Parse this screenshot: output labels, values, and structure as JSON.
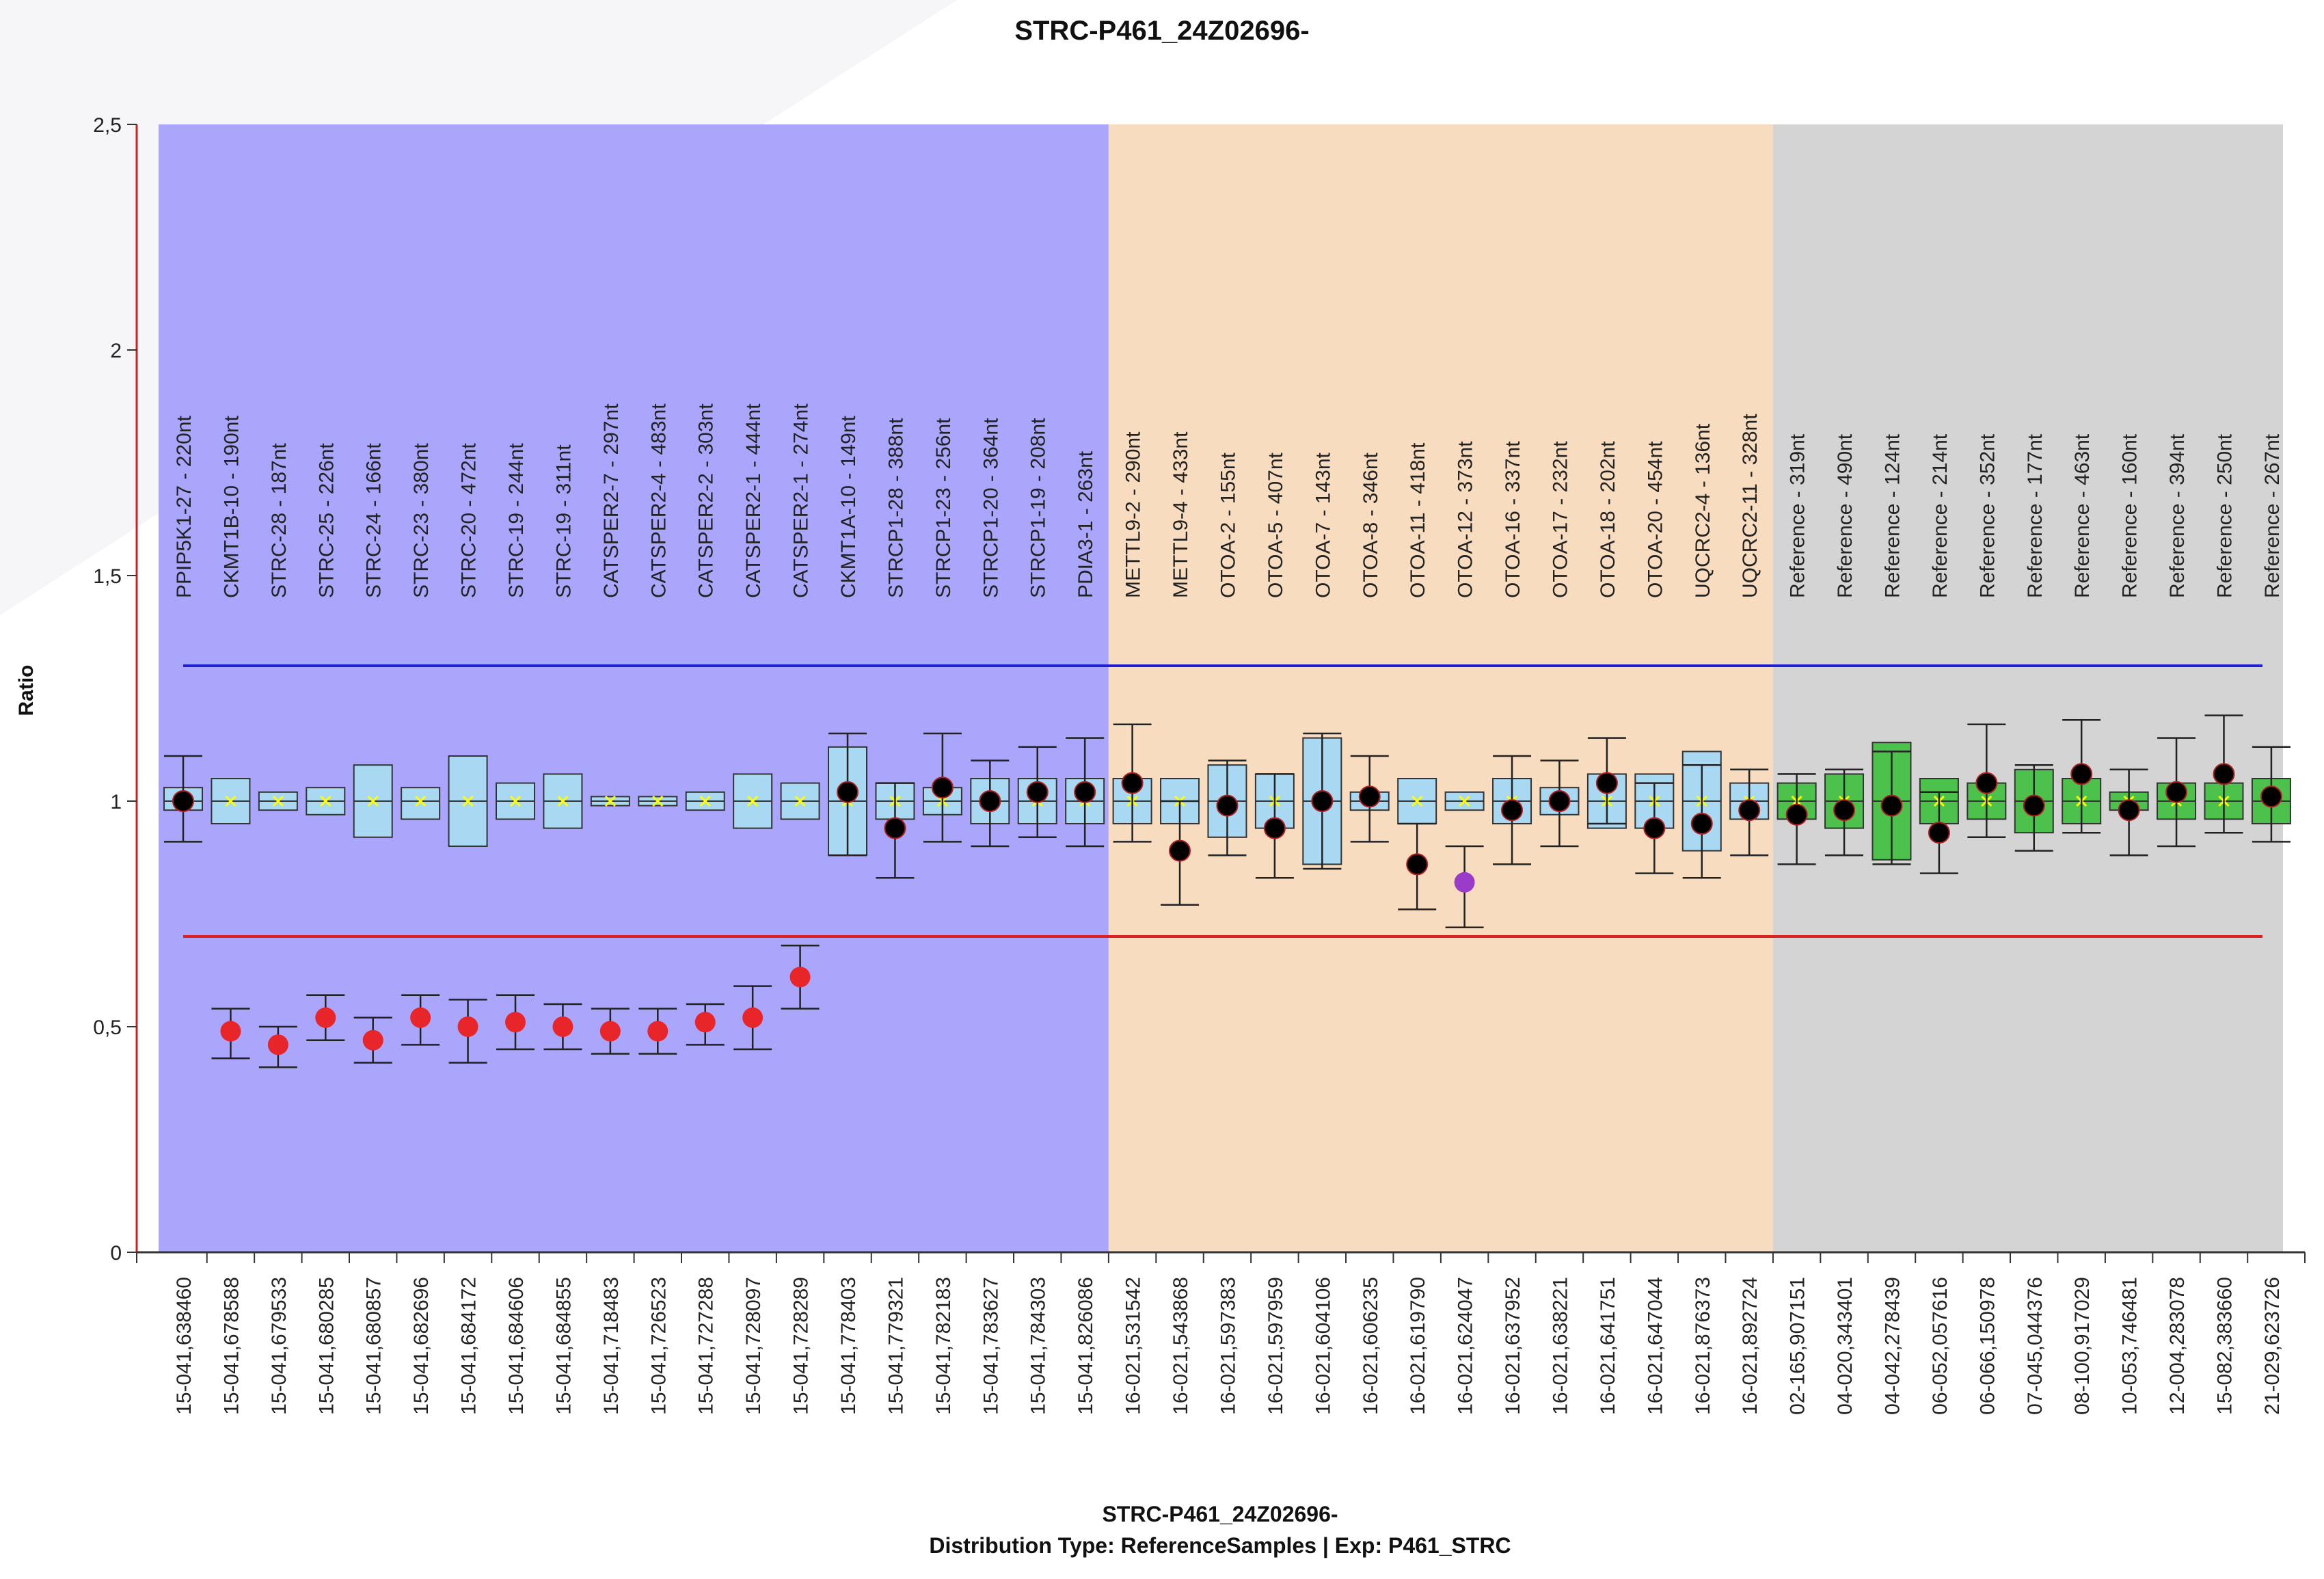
{
  "chart_data": {
    "type": "boxplot",
    "title": "STRC-P461_24Z02696-",
    "footer_line1": "STRC-P461_24Z02696-",
    "footer_line2": "Distribution Type: ReferenceSamples | Exp: P461_STRC",
    "ylabel": "Ratio",
    "ylim": [
      0,
      2.5
    ],
    "yticks": [
      0,
      0.5,
      1,
      1.5,
      2,
      2.5
    ],
    "ytick_labels": [
      "0",
      "0,5",
      "1",
      "1,5",
      "2",
      "2,5"
    ],
    "thresholds": {
      "upper": 1.3,
      "lower": 0.7,
      "upper_color": "#1f1fd0",
      "lower_color": "#e02020"
    },
    "colors": {
      "region_blue": "#a9a6fc",
      "region_orange": "#f8dcbf",
      "region_gray": "#d4d4d4",
      "box_blue": "#a9d8f2",
      "box_green": "#4cc24c",
      "marker_normal": "#000000",
      "marker_loss": "#e8262a",
      "marker_violet": "#9a3cc8",
      "mean_cross": "#ffff00",
      "axis_left": "#d02020"
    },
    "regions": [
      {
        "from": 0,
        "to": 19,
        "type": "blue"
      },
      {
        "from": 20,
        "to": 33,
        "type": "orange"
      },
      {
        "from": 34,
        "to": 44,
        "type": "gray"
      }
    ],
    "probes": [
      {
        "name": "PPIP5K1-27 - 220nt",
        "pos": "15-041,638460",
        "box": [
          0.98,
          1.03
        ],
        "mean": 1.0,
        "marker": 1.0,
        "err": [
          0.91,
          1.1
        ],
        "status": "normal",
        "box_type": "blue"
      },
      {
        "name": "CKMT1B-10 - 190nt",
        "pos": "15-041,678588",
        "box": [
          0.95,
          1.05
        ],
        "mean": 1.0,
        "marker": 0.49,
        "err": [
          0.43,
          0.54
        ],
        "status": "loss",
        "box_type": "blue"
      },
      {
        "name": "STRC-28 - 187nt",
        "pos": "15-041,679533",
        "box": [
          0.98,
          1.02
        ],
        "mean": 1.0,
        "marker": 0.46,
        "err": [
          0.41,
          0.5
        ],
        "status": "loss",
        "box_type": "blue"
      },
      {
        "name": "STRC-25 - 226nt",
        "pos": "15-041,680285",
        "box": [
          0.97,
          1.03
        ],
        "mean": 1.0,
        "marker": 0.52,
        "err": [
          0.47,
          0.57
        ],
        "status": "loss",
        "box_type": "blue"
      },
      {
        "name": "STRC-24 - 166nt",
        "pos": "15-041,680857",
        "box": [
          0.92,
          1.08
        ],
        "mean": 1.0,
        "marker": 0.47,
        "err": [
          0.42,
          0.52
        ],
        "status": "loss",
        "box_type": "blue"
      },
      {
        "name": "STRC-23 - 380nt",
        "pos": "15-041,682696",
        "box": [
          0.96,
          1.03
        ],
        "mean": 1.0,
        "marker": 0.52,
        "err": [
          0.46,
          0.57
        ],
        "status": "loss",
        "box_type": "blue"
      },
      {
        "name": "STRC-20 - 472nt",
        "pos": "15-041,684172",
        "box": [
          0.9,
          1.1
        ],
        "mean": 1.0,
        "marker": 0.5,
        "err": [
          0.42,
          0.56
        ],
        "status": "loss",
        "box_type": "blue"
      },
      {
        "name": "STRC-19 - 244nt",
        "pos": "15-041,684606",
        "box": [
          0.96,
          1.04
        ],
        "mean": 1.0,
        "marker": 0.51,
        "err": [
          0.45,
          0.57
        ],
        "status": "loss",
        "box_type": "blue"
      },
      {
        "name": "STRC-19 - 311nt",
        "pos": "15-041,684855",
        "box": [
          0.94,
          1.06
        ],
        "mean": 1.0,
        "marker": 0.5,
        "err": [
          0.45,
          0.55
        ],
        "status": "loss",
        "box_type": "blue"
      },
      {
        "name": "CATSPER2-7 - 297nt",
        "pos": "15-041,718483",
        "box": [
          0.99,
          1.01
        ],
        "mean": 1.0,
        "marker": 0.49,
        "err": [
          0.44,
          0.54
        ],
        "status": "loss",
        "box_type": "blue"
      },
      {
        "name": "CATSPER2-4 - 483nt",
        "pos": "15-041,726523",
        "box": [
          0.99,
          1.01
        ],
        "mean": 1.0,
        "marker": 0.49,
        "err": [
          0.44,
          0.54
        ],
        "status": "loss",
        "box_type": "blue"
      },
      {
        "name": "CATSPER2-2 - 303nt",
        "pos": "15-041,727288",
        "box": [
          0.98,
          1.02
        ],
        "mean": 1.0,
        "marker": 0.51,
        "err": [
          0.46,
          0.55
        ],
        "status": "loss",
        "box_type": "blue"
      },
      {
        "name": "CATSPER2-1 - 444nt",
        "pos": "15-041,728097",
        "box": [
          0.94,
          1.06
        ],
        "mean": 1.0,
        "marker": 0.52,
        "err": [
          0.45,
          0.59
        ],
        "status": "loss",
        "box_type": "blue"
      },
      {
        "name": "CATSPER2-1 - 274nt",
        "pos": "15-041,728289",
        "box": [
          0.96,
          1.04
        ],
        "mean": 1.0,
        "marker": 0.61,
        "err": [
          0.54,
          0.68
        ],
        "status": "loss",
        "box_type": "blue"
      },
      {
        "name": "CKMT1A-10 - 149nt",
        "pos": "15-041,778403",
        "box": [
          0.88,
          1.12
        ],
        "mean": 1.0,
        "marker": 1.02,
        "err": [
          0.88,
          1.15
        ],
        "status": "normal",
        "box_type": "blue"
      },
      {
        "name": "STRCP1-28 - 388nt",
        "pos": "15-041,779321",
        "box": [
          0.96,
          1.04
        ],
        "mean": 1.0,
        "marker": 0.94,
        "err": [
          0.83,
          1.04
        ],
        "status": "normal",
        "box_type": "blue"
      },
      {
        "name": "STRCP1-23 - 256nt",
        "pos": "15-041,782183",
        "box": [
          0.97,
          1.03
        ],
        "mean": 1.0,
        "marker": 1.03,
        "err": [
          0.91,
          1.15
        ],
        "status": "normal",
        "box_type": "blue"
      },
      {
        "name": "STRCP1-20 - 364nt",
        "pos": "15-041,783627",
        "box": [
          0.95,
          1.05
        ],
        "mean": 1.0,
        "marker": 1.0,
        "err": [
          0.9,
          1.09
        ],
        "status": "normal",
        "box_type": "blue"
      },
      {
        "name": "STRCP1-19 - 208nt",
        "pos": "15-041,784303",
        "box": [
          0.95,
          1.05
        ],
        "mean": 1.0,
        "marker": 1.02,
        "err": [
          0.92,
          1.12
        ],
        "status": "normal",
        "box_type": "blue"
      },
      {
        "name": "PDIA3-1 - 263nt",
        "pos": "15-041,826086",
        "box": [
          0.95,
          1.05
        ],
        "mean": 1.0,
        "marker": 1.02,
        "err": [
          0.9,
          1.14
        ],
        "status": "normal",
        "box_type": "blue"
      },
      {
        "name": "METTL9-2 - 290nt",
        "pos": "16-021,531542",
        "box": [
          0.95,
          1.05
        ],
        "mean": 1.0,
        "marker": 1.04,
        "err": [
          0.91,
          1.17
        ],
        "status": "normal",
        "box_type": "blue"
      },
      {
        "name": "METTL9-4 - 433nt",
        "pos": "16-021,543868",
        "box": [
          0.95,
          1.05
        ],
        "mean": 1.0,
        "marker": 0.89,
        "err": [
          0.77,
          1.0
        ],
        "status": "normal",
        "box_type": "blue"
      },
      {
        "name": "OTOA-2 - 155nt",
        "pos": "16-021,597383",
        "box": [
          0.92,
          1.08
        ],
        "mean": 1.0,
        "marker": 0.99,
        "err": [
          0.88,
          1.09
        ],
        "status": "normal",
        "box_type": "blue"
      },
      {
        "name": "OTOA-5 - 407nt",
        "pos": "16-021,597959",
        "box": [
          0.94,
          1.06
        ],
        "mean": 1.0,
        "marker": 0.94,
        "err": [
          0.83,
          1.06
        ],
        "status": "normal",
        "box_type": "blue"
      },
      {
        "name": "OTOA-7 - 143nt",
        "pos": "16-021,604106",
        "box": [
          0.86,
          1.14
        ],
        "mean": 1.0,
        "marker": 1.0,
        "err": [
          0.85,
          1.15
        ],
        "status": "normal",
        "box_type": "blue"
      },
      {
        "name": "OTOA-8 - 346nt",
        "pos": "16-021,606235",
        "box": [
          0.98,
          1.02
        ],
        "mean": 1.0,
        "marker": 1.01,
        "err": [
          0.91,
          1.1
        ],
        "status": "normal",
        "box_type": "blue"
      },
      {
        "name": "OTOA-11 - 418nt",
        "pos": "16-021,619790",
        "box": [
          0.95,
          1.05
        ],
        "mean": 1.0,
        "marker": 0.86,
        "err": [
          0.76,
          0.95
        ],
        "status": "normal",
        "box_type": "blue"
      },
      {
        "name": "OTOA-12 - 373nt",
        "pos": "16-021,624047",
        "box": [
          0.98,
          1.02
        ],
        "mean": 1.0,
        "marker": 0.82,
        "err": [
          0.72,
          0.9
        ],
        "status": "violet",
        "box_type": "blue"
      },
      {
        "name": "OTOA-16 - 337nt",
        "pos": "16-021,637952",
        "box": [
          0.95,
          1.05
        ],
        "mean": 1.0,
        "marker": 0.98,
        "err": [
          0.86,
          1.1
        ],
        "status": "normal",
        "box_type": "blue"
      },
      {
        "name": "OTOA-17 - 232nt",
        "pos": "16-021,638221",
        "box": [
          0.97,
          1.03
        ],
        "mean": 1.0,
        "marker": 1.0,
        "err": [
          0.9,
          1.09
        ],
        "status": "normal",
        "box_type": "blue"
      },
      {
        "name": "OTOA-18 - 202nt",
        "pos": "16-021,641751",
        "box": [
          0.94,
          1.06
        ],
        "mean": 1.0,
        "marker": 1.04,
        "err": [
          0.95,
          1.14
        ],
        "status": "normal",
        "box_type": "blue"
      },
      {
        "name": "OTOA-20 - 454nt",
        "pos": "16-021,647044",
        "box": [
          0.94,
          1.06
        ],
        "mean": 1.0,
        "marker": 0.94,
        "err": [
          0.84,
          1.04
        ],
        "status": "normal",
        "box_type": "blue"
      },
      {
        "name": "UQCRC2-4 - 136nt",
        "pos": "16-021,876373",
        "box": [
          0.89,
          1.11
        ],
        "mean": 1.0,
        "marker": 0.95,
        "err": [
          0.83,
          1.08
        ],
        "status": "normal",
        "box_type": "blue"
      },
      {
        "name": "UQCRC2-11 - 328nt",
        "pos": "16-021,892724",
        "box": [
          0.96,
          1.04
        ],
        "mean": 1.0,
        "marker": 0.98,
        "err": [
          0.88,
          1.07
        ],
        "status": "normal",
        "box_type": "blue"
      },
      {
        "name": "Reference - 319nt",
        "pos": "02-165,907151",
        "box": [
          0.96,
          1.04
        ],
        "mean": 1.0,
        "marker": 0.97,
        "err": [
          0.86,
          1.06
        ],
        "status": "normal",
        "box_type": "green"
      },
      {
        "name": "Reference - 490nt",
        "pos": "04-020,343401",
        "box": [
          0.94,
          1.06
        ],
        "mean": 1.0,
        "marker": 0.98,
        "err": [
          0.88,
          1.07
        ],
        "status": "normal",
        "box_type": "green"
      },
      {
        "name": "Reference - 124nt",
        "pos": "04-042,278439",
        "box": [
          0.87,
          1.13
        ],
        "mean": 1.0,
        "marker": 0.99,
        "err": [
          0.86,
          1.11
        ],
        "status": "normal",
        "box_type": "green"
      },
      {
        "name": "Reference - 214nt",
        "pos": "06-052,057616",
        "box": [
          0.95,
          1.05
        ],
        "mean": 1.0,
        "marker": 0.93,
        "err": [
          0.84,
          1.02
        ],
        "status": "normal",
        "box_type": "green"
      },
      {
        "name": "Reference - 352nt",
        "pos": "06-066,150978",
        "box": [
          0.96,
          1.04
        ],
        "mean": 1.0,
        "marker": 1.04,
        "err": [
          0.92,
          1.17
        ],
        "status": "normal",
        "box_type": "green"
      },
      {
        "name": "Reference - 177nt",
        "pos": "07-045,044376",
        "box": [
          0.93,
          1.07
        ],
        "mean": 1.0,
        "marker": 0.99,
        "err": [
          0.89,
          1.08
        ],
        "status": "normal",
        "box_type": "green"
      },
      {
        "name": "Reference - 463nt",
        "pos": "08-100,917029",
        "box": [
          0.95,
          1.05
        ],
        "mean": 1.0,
        "marker": 1.06,
        "err": [
          0.93,
          1.18
        ],
        "status": "normal",
        "box_type": "green"
      },
      {
        "name": "Reference - 160nt",
        "pos": "10-053,746481",
        "box": [
          0.98,
          1.02
        ],
        "mean": 1.0,
        "marker": 0.98,
        "err": [
          0.88,
          1.07
        ],
        "status": "normal",
        "box_type": "green"
      },
      {
        "name": "Reference - 394nt",
        "pos": "12-004,283078",
        "box": [
          0.96,
          1.04
        ],
        "mean": 1.0,
        "marker": 1.02,
        "err": [
          0.9,
          1.14
        ],
        "status": "normal",
        "box_type": "green"
      },
      {
        "name": "Reference - 250nt",
        "pos": "15-082,383660",
        "box": [
          0.96,
          1.04
        ],
        "mean": 1.0,
        "marker": 1.06,
        "err": [
          0.93,
          1.19
        ],
        "status": "normal",
        "box_type": "green"
      },
      {
        "name": "Reference - 267nt",
        "pos": "21-029,623726",
        "box": [
          0.95,
          1.05
        ],
        "mean": 1.0,
        "marker": 1.01,
        "err": [
          0.91,
          1.12
        ],
        "status": "normal",
        "box_type": "green"
      }
    ]
  }
}
